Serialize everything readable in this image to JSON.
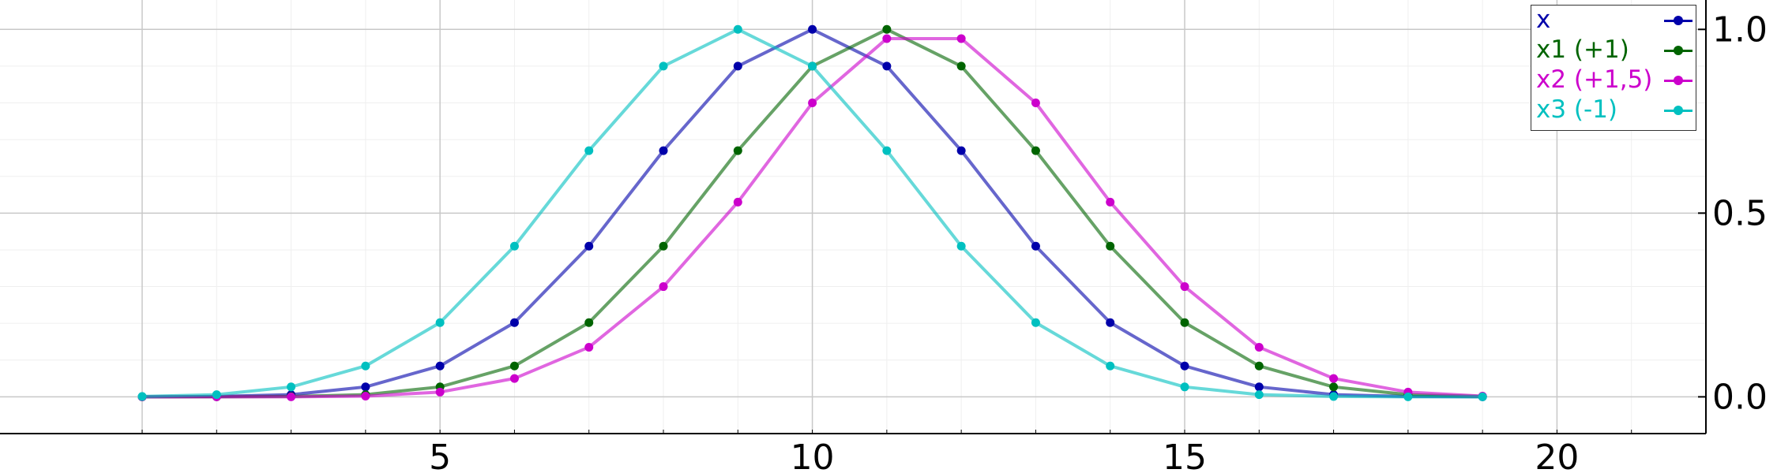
{
  "chart_data": {
    "type": "line",
    "x": [
      1,
      2,
      3,
      4,
      5,
      6,
      7,
      8,
      9,
      10,
      11,
      12,
      13,
      14,
      15,
      16,
      17,
      18,
      19
    ],
    "series": [
      {
        "name": "x",
        "color": "#0000aa",
        "values": [
          0.0,
          0.001,
          0.006,
          0.027,
          0.084,
          0.202,
          0.41,
          0.67,
          0.9,
          1.0,
          0.9,
          0.67,
          0.41,
          0.202,
          0.084,
          0.027,
          0.006,
          0.001,
          0.0
        ]
      },
      {
        "name": "x1 (+1)",
        "color": "#006400",
        "values": [
          0.0,
          0.0,
          0.001,
          0.006,
          0.027,
          0.084,
          0.202,
          0.41,
          0.67,
          0.9,
          1.0,
          0.9,
          0.67,
          0.41,
          0.202,
          0.084,
          0.027,
          0.006,
          0.001
        ]
      },
      {
        "name": "x2 (+1,5)",
        "color": "#cc00cc",
        "values": [
          0.0,
          0.0,
          0.0,
          0.002,
          0.013,
          0.05,
          0.135,
          0.3,
          0.53,
          0.8,
          0.975,
          0.975,
          0.8,
          0.53,
          0.3,
          0.135,
          0.05,
          0.013,
          0.002
        ]
      },
      {
        "name": "x3 (-1)",
        "color": "#00c0c0",
        "values": [
          0.001,
          0.006,
          0.027,
          0.084,
          0.202,
          0.41,
          0.67,
          0.9,
          1.0,
          0.9,
          0.67,
          0.41,
          0.202,
          0.084,
          0.027,
          0.006,
          0.001,
          0.0,
          0.0
        ]
      }
    ],
    "xticks": [
      "5",
      "10",
      "15",
      "20"
    ],
    "yticks": [
      "0.0",
      "0.5",
      "1.0"
    ],
    "xlim": [
      1,
      22
    ],
    "ylim": [
      -0.1,
      1.08
    ],
    "grid": true,
    "legend_position": "top-right",
    "yaxis_side": "right"
  }
}
